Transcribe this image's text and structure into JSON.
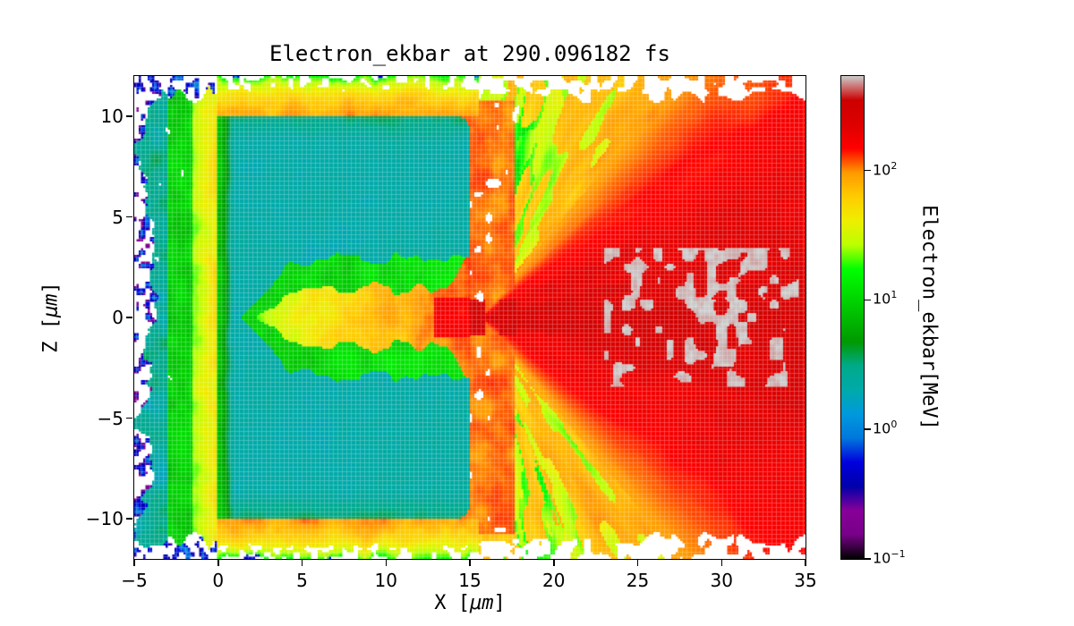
{
  "figure": {
    "title": "Electron_ekbar at 290.096182 fs"
  },
  "chart_data": {
    "type": "heatmap",
    "title": "Electron_ekbar at 290.096182 fs",
    "xlabel": "X [μm]",
    "ylabel": "Z [μm]",
    "xlabel_parts": {
      "pre": "X [",
      "unit": "μm",
      "post": "]"
    },
    "ylabel_parts": {
      "pre": "Z [",
      "unit": "μm",
      "post": "]"
    },
    "colorbar_label": "Electron_ekbar[MeV]",
    "x_range": [
      -5,
      35
    ],
    "z_range": [
      -12,
      12
    ],
    "x_tick_values": [
      -5,
      0,
      5,
      10,
      15,
      20,
      25,
      30,
      35
    ],
    "x_tick_labels": [
      "−5",
      "0",
      "5",
      "10",
      "15",
      "20",
      "25",
      "30",
      "35"
    ],
    "z_tick_values": [
      10,
      5,
      0,
      -5,
      -10
    ],
    "z_tick_labels": [
      "10",
      "5",
      "0",
      "−5",
      "−10"
    ],
    "grid": false,
    "legend": null,
    "color_scale": {
      "type": "log",
      "unit": "MeV",
      "vmin": 0.1,
      "vmax": 537,
      "tick_values": [
        0.1,
        1,
        10,
        100
      ],
      "tick_base": "10",
      "tick_exponents": [
        "−1",
        "0",
        "1",
        "2"
      ]
    },
    "colormap": {
      "name": "nipy_spectral",
      "stops": [
        [
          0.0,
          0,
          0,
          0
        ],
        [
          0.05,
          119,
          0,
          136
        ],
        [
          0.1,
          136,
          0,
          153
        ],
        [
          0.15,
          0,
          0,
          170
        ],
        [
          0.2,
          0,
          0,
          221
        ],
        [
          0.25,
          0,
          119,
          221
        ],
        [
          0.3,
          0,
          153,
          221
        ],
        [
          0.35,
          0,
          170,
          170
        ],
        [
          0.4,
          0,
          170,
          136
        ],
        [
          0.45,
          0,
          153,
          0
        ],
        [
          0.5,
          0,
          187,
          0
        ],
        [
          0.55,
          0,
          221,
          0
        ],
        [
          0.6,
          0,
          255,
          0
        ],
        [
          0.65,
          187,
          255,
          0
        ],
        [
          0.7,
          238,
          238,
          0
        ],
        [
          0.75,
          255,
          204,
          0
        ],
        [
          0.8,
          255,
          153,
          0
        ],
        [
          0.85,
          255,
          0,
          0
        ],
        [
          0.9,
          221,
          0,
          0
        ],
        [
          0.95,
          204,
          0,
          0
        ],
        [
          1.0,
          204,
          204,
          204
        ]
      ]
    },
    "regions": [
      {
        "name": "target-bulk",
        "desc": "cold slab target, teal",
        "x": [
          0,
          15
        ],
        "z": [
          -10,
          10
        ],
        "mev": 2
      },
      {
        "name": "target-front-edge",
        "desc": "heated front surface, green",
        "x": [
          -0.5,
          1.2
        ],
        "z": [
          -10,
          10
        ],
        "mev": 7
      },
      {
        "name": "laser-drilled-channel",
        "desc": "hot channel on axis, yellow-orange, wiggly walls",
        "x": [
          3,
          15
        ],
        "z": [
          -1.8,
          1.8
        ],
        "mev_range": [
          25,
          120
        ]
      },
      {
        "name": "channel-sheath",
        "desc": "green transition layer around channel",
        "x": [
          2,
          15
        ],
        "z": [
          -3.2,
          3.2
        ],
        "mev": 9
      },
      {
        "name": "front-preplasma",
        "desc": "expanding plasma in front of target, yellow→green→blue specks outward",
        "x": [
          -5,
          0
        ],
        "z": [
          -11.5,
          11.5
        ],
        "mev_range": [
          0.2,
          50
        ]
      },
      {
        "name": "transverse-halo",
        "desc": "orange band above/below target fading to ragged green fringe",
        "x": [
          -1,
          16
        ],
        "z_abs": [
          10,
          12
        ],
        "mev_range": [
          10,
          120
        ]
      },
      {
        "name": "exit-fan",
        "desc": "divergent fan of accelerated electrons, radial red/orange streaks with green filaments near edges",
        "x": [
          15,
          35
        ],
        "z": [
          -12,
          12
        ],
        "mev_range": [
          40,
          300
        ]
      },
      {
        "name": "hot-electron-core",
        "desc": "highest-energy gray patches on axis",
        "x": [
          23,
          34.5
        ],
        "z": [
          -3.5,
          3.5
        ],
        "mev_range": [
          300,
          537
        ]
      }
    ],
    "field_model": {
      "seed": 1337,
      "target": {
        "x": [
          0,
          15
        ],
        "z_half": 10,
        "bulk_mev": 1.9,
        "front_edge_mev": 6.5
      },
      "channel": {
        "x_start": 3,
        "half_width": 1.45,
        "mev_near": 26,
        "mev_far": 115
      },
      "fan": {
        "origin_x": 15.6,
        "base_mev": 72,
        "core_mev": 265,
        "hot_patch_mev": 530
      },
      "preplasma": {
        "extent": 4.1,
        "yellow_mev": 36,
        "green_mev": 9,
        "fringe_mev": 0.8
      },
      "halo_mev": 85
    }
  }
}
